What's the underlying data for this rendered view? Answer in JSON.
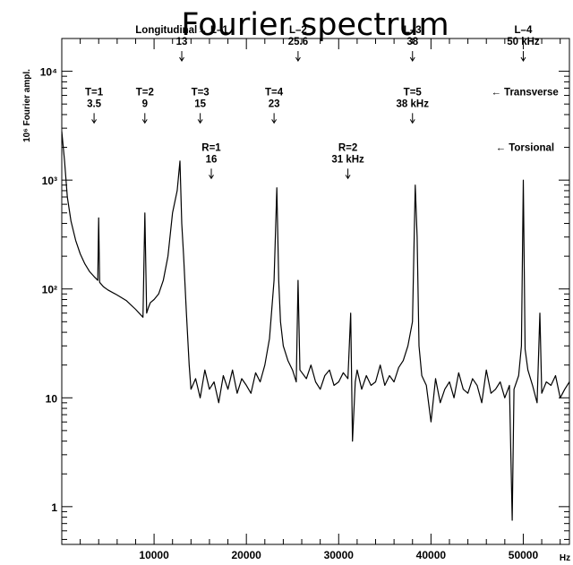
{
  "chart_data": {
    "type": "line",
    "title": "Fourier spectrum",
    "xlabel": "Hz",
    "ylabel": "10⁶ Fourier ampl.",
    "xlim": [
      0,
      55000
    ],
    "ylim": [
      0.45,
      20000
    ],
    "y_scale": "log",
    "grid": false,
    "x_ticks": [
      {
        "value": 10000,
        "label": "10000"
      },
      {
        "value": 20000,
        "label": "20000"
      },
      {
        "value": 30000,
        "label": "30000"
      },
      {
        "value": 40000,
        "label": "40000"
      },
      {
        "value": 50000,
        "label": "50000"
      }
    ],
    "y_ticks": [
      {
        "value": 1,
        "label": "1"
      },
      {
        "value": 10,
        "label": "10"
      },
      {
        "value": 100,
        "label": "10²"
      },
      {
        "value": 1000,
        "label": "10³"
      },
      {
        "value": 10000,
        "label": "10⁴"
      }
    ],
    "series": [
      {
        "color": "#000000",
        "x": [
          0,
          300,
          600,
          1000,
          1500,
          2000,
          2500,
          3000,
          3500,
          3900,
          4000,
          4100,
          4500,
          5000,
          6000,
          7000,
          8000,
          8800,
          9000,
          9200,
          9400,
          9600,
          10000,
          10500,
          11000,
          11500,
          12000,
          12500,
          12800,
          13000,
          13200,
          13500,
          13800,
          14000,
          14500,
          15000,
          15500,
          16000,
          16500,
          17000,
          17500,
          18000,
          18500,
          19000,
          19500,
          20000,
          20500,
          21000,
          21500,
          22000,
          22500,
          23000,
          23300,
          23500,
          23700,
          24000,
          24500,
          25000,
          25400,
          25600,
          25800,
          26500,
          27000,
          27500,
          28000,
          28500,
          29000,
          29500,
          30000,
          30500,
          31000,
          31300,
          31500,
          31800,
          32000,
          32500,
          33000,
          33500,
          34000,
          34500,
          35000,
          35500,
          36000,
          36500,
          37000,
          37500,
          38000,
          38300,
          38500,
          38700,
          39000,
          39500,
          40000,
          40500,
          41000,
          41500,
          42000,
          42500,
          43000,
          43500,
          44000,
          44500,
          45000,
          45500,
          46000,
          46500,
          47000,
          47500,
          48000,
          48500,
          48800,
          49000,
          49500,
          49800,
          50000,
          50200,
          50500,
          51000,
          51500,
          51800,
          52000,
          52500,
          53000,
          53500,
          54000,
          54500,
          55000
        ],
        "values": [
          2800,
          1500,
          700,
          420,
          280,
          210,
          170,
          145,
          130,
          120,
          450,
          115,
          105,
          98,
          88,
          78,
          65,
          55,
          500,
          60,
          68,
          75,
          80,
          90,
          120,
          200,
          500,
          800,
          1500,
          400,
          200,
          60,
          20,
          12,
          15,
          10,
          18,
          12,
          14,
          9,
          16,
          12,
          18,
          11,
          15,
          13,
          11,
          17,
          14,
          20,
          35,
          120,
          850,
          120,
          50,
          30,
          22,
          18,
          14,
          120,
          18,
          15,
          20,
          14,
          12,
          16,
          18,
          13,
          14,
          17,
          15,
          60,
          4,
          14,
          18,
          12,
          16,
          13,
          14,
          20,
          13,
          16,
          14,
          19,
          22,
          30,
          50,
          900,
          300,
          30,
          16,
          13,
          6,
          15,
          9,
          12,
          14,
          10,
          17,
          12,
          11,
          15,
          13,
          9,
          18,
          11,
          12,
          14,
          10,
          13,
          0.75,
          12,
          16,
          30,
          1000,
          28,
          18,
          13,
          9,
          60,
          11,
          14,
          13,
          16,
          10,
          12,
          14
        ]
      }
    ],
    "annotations": [
      {
        "lines": [
          "Longitudinal→ L–1",
          "13"
        ],
        "x": 13000,
        "y": 4.35,
        "arrow": true
      },
      {
        "lines": [
          "L–2",
          "25.6"
        ],
        "x": 25600,
        "y": 4.35,
        "arrow": true
      },
      {
        "lines": [
          "L–3",
          "38"
        ],
        "x": 38000,
        "y": 4.35,
        "arrow": true
      },
      {
        "lines": [
          "L–4",
          "50 kHz"
        ],
        "x": 50000,
        "y": 4.35,
        "arrow": true
      },
      {
        "lines": [
          "T=1",
          "3.5"
        ],
        "x": 3500,
        "y": 3.78,
        "arrow": true
      },
      {
        "lines": [
          "T=2",
          "9"
        ],
        "x": 9000,
        "y": 3.78,
        "arrow": true
      },
      {
        "lines": [
          "T=3",
          "15"
        ],
        "x": 15000,
        "y": 3.78,
        "arrow": true
      },
      {
        "lines": [
          "T=4",
          "23"
        ],
        "x": 23000,
        "y": 3.78,
        "arrow": true
      },
      {
        "lines": [
          "T=5",
          "38 kHz"
        ],
        "x": 38000,
        "y": 3.78,
        "arrow": true
      },
      {
        "lines": [
          "← Transverse"
        ],
        "x": 46500,
        "y": 3.78,
        "arrow": false
      },
      {
        "lines": [
          "R=1",
          "16"
        ],
        "x": 16200,
        "y": 3.27,
        "arrow": true
      },
      {
        "lines": [
          "R=2",
          "31 kHz"
        ],
        "x": 31000,
        "y": 3.27,
        "arrow": true
      },
      {
        "lines": [
          "← Torsional"
        ],
        "x": 47000,
        "y": 3.27,
        "arrow": false
      }
    ]
  }
}
